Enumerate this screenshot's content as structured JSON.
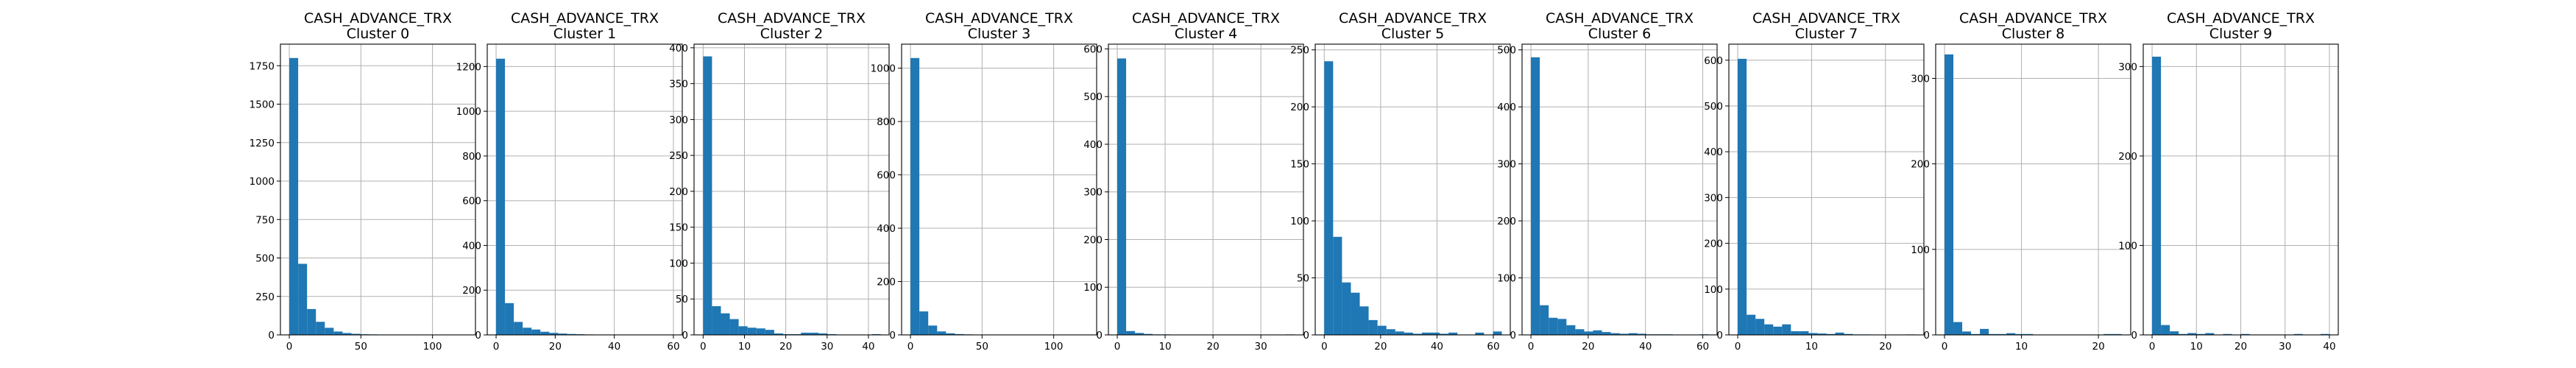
{
  "figure": {
    "bar_color": "#1f77b4",
    "grid": true,
    "layout": "1 row x 10 panels"
  },
  "chart_data": [
    {
      "type": "bar",
      "title": "CASH_ADVANCE_TRX",
      "subtitle": "Cluster 0",
      "xlim": [
        -6.2,
        130
      ],
      "ylim": [
        0,
        1890
      ],
      "xticks": [
        0,
        50,
        100
      ],
      "yticks": [
        0,
        250,
        500,
        750,
        1000,
        1250,
        1500,
        1750
      ],
      "bin_edges": [
        0,
        6.2,
        12.4,
        18.6,
        24.8,
        31,
        37.2,
        43.4,
        49.6,
        55.8,
        62,
        68.2,
        74.4,
        80.6,
        86.8,
        93,
        99.2,
        105.4,
        111.6,
        117.8,
        124
      ],
      "values": [
        1800,
        462,
        168,
        85,
        46,
        22,
        12,
        7,
        4,
        3,
        2,
        1,
        1,
        1,
        0,
        0,
        0,
        0,
        0,
        1
      ]
    },
    {
      "type": "bar",
      "title": "CASH_ADVANCE_TRX",
      "subtitle": "Cluster 1",
      "xlim": [
        -3,
        63
      ],
      "ylim": [
        0,
        1300
      ],
      "xticks": [
        0,
        20,
        40,
        60
      ],
      "yticks": [
        0,
        200,
        400,
        600,
        800,
        1000,
        1200
      ],
      "bin_edges": [
        0,
        3,
        6,
        9,
        12,
        15,
        18,
        21,
        24,
        27,
        30,
        33,
        36,
        39,
        42,
        45,
        48,
        51,
        54,
        57,
        60
      ],
      "values": [
        1235,
        142,
        58,
        32,
        24,
        14,
        9,
        6,
        4,
        3,
        2,
        1,
        1,
        1,
        0,
        0,
        0,
        0,
        0,
        1
      ]
    },
    {
      "type": "bar",
      "title": "CASH_ADVANCE_TRX",
      "subtitle": "Cluster 2",
      "xlim": [
        -2.2,
        45
      ],
      "ylim": [
        0,
        405
      ],
      "xticks": [
        0,
        10,
        20,
        30,
        40
      ],
      "yticks": [
        0,
        50,
        100,
        150,
        200,
        250,
        300,
        350,
        400
      ],
      "bin_edges": [
        0,
        2.15,
        4.3,
        6.45,
        8.6,
        10.75,
        12.9,
        15.05,
        17.2,
        19.35,
        21.5,
        23.65,
        25.8,
        27.95,
        30.1,
        32.25,
        34.4,
        36.55,
        38.7,
        40.85,
        43
      ],
      "values": [
        388,
        40,
        30,
        22,
        12,
        10,
        9,
        7,
        2,
        1,
        1,
        3,
        3,
        2,
        1,
        0,
        0,
        0,
        0,
        1
      ]
    },
    {
      "type": "bar",
      "title": "CASH_ADVANCE_TRX",
      "subtitle": "Cluster 3",
      "xlim": [
        -6.2,
        130
      ],
      "ylim": [
        0,
        1090
      ],
      "xticks": [
        0,
        50,
        100
      ],
      "yticks": [
        0,
        200,
        400,
        600,
        800,
        1000
      ],
      "bin_edges": [
        0,
        6.2,
        12.4,
        18.6,
        24.8,
        31,
        37.2,
        43.4,
        49.6,
        55.8,
        62,
        68.2,
        74.4,
        80.6,
        86.8,
        93,
        99.2,
        105.4,
        111.6,
        117.8,
        124
      ],
      "values": [
        1038,
        88,
        35,
        13,
        6,
        3,
        2,
        1,
        1,
        0,
        0,
        0,
        0,
        0,
        0,
        0,
        0,
        0,
        0,
        1
      ]
    },
    {
      "type": "bar",
      "title": "CASH_ADVANCE_TRX",
      "subtitle": "Cluster 4",
      "xlim": [
        -1.85,
        38.9
      ],
      "ylim": [
        0,
        610
      ],
      "xticks": [
        0,
        10,
        20,
        30
      ],
      "yticks": [
        0,
        100,
        200,
        300,
        400,
        500,
        600
      ],
      "bin_edges": [
        0,
        1.85,
        3.7,
        5.55,
        7.4,
        9.25,
        11.1,
        12.95,
        14.8,
        16.65,
        18.5,
        20.35,
        22.2,
        24.05,
        25.9,
        27.75,
        29.6,
        31.45,
        33.3,
        35.15,
        37
      ],
      "values": [
        580,
        8,
        4,
        2,
        1,
        1,
        0,
        0,
        0,
        0,
        0,
        0,
        0,
        0,
        0,
        0,
        0,
        0,
        0,
        1
      ]
    },
    {
      "type": "bar",
      "title": "CASH_ADVANCE_TRX",
      "subtitle": "Cluster 5",
      "xlim": [
        -3.2,
        66
      ],
      "ylim": [
        0,
        255
      ],
      "xticks": [
        0,
        20,
        40,
        60
      ],
      "yticks": [
        0,
        50,
        100,
        150,
        200,
        250
      ],
      "bin_edges": [
        0,
        3.15,
        6.3,
        9.45,
        12.6,
        15.75,
        18.9,
        22.05,
        25.2,
        28.35,
        31.5,
        34.65,
        37.8,
        40.95,
        44.1,
        47.25,
        50.4,
        53.55,
        56.7,
        59.85,
        63
      ],
      "values": [
        240,
        86,
        46,
        37,
        25,
        13,
        8,
        5,
        3,
        2,
        1,
        2,
        2,
        1,
        2,
        0,
        0,
        2,
        0,
        3
      ]
    },
    {
      "type": "bar",
      "title": "CASH_ADVANCE_TRX",
      "subtitle": "Cluster 6",
      "xlim": [
        -3.1,
        65
      ],
      "ylim": [
        0,
        510
      ],
      "xticks": [
        0,
        20,
        40,
        60
      ],
      "yticks": [
        0,
        100,
        200,
        300,
        400,
        500
      ],
      "bin_edges": [
        0,
        3.1,
        6.2,
        9.3,
        12.4,
        15.5,
        18.6,
        21.7,
        24.8,
        27.9,
        31,
        34.1,
        37.2,
        40.3,
        43.4,
        46.5,
        49.6,
        52.7,
        55.8,
        58.9,
        62
      ],
      "values": [
        487,
        52,
        30,
        28,
        17,
        10,
        6,
        8,
        5,
        3,
        2,
        3,
        2,
        1,
        1,
        1,
        0,
        0,
        0,
        1
      ]
    },
    {
      "type": "bar",
      "title": "CASH_ADVANCE_TRX",
      "subtitle": "Cluster 7",
      "xlim": [
        -1.2,
        25.2
      ],
      "ylim": [
        0,
        635
      ],
      "xticks": [
        0,
        10,
        20
      ],
      "yticks": [
        0,
        100,
        200,
        300,
        400,
        500,
        600
      ],
      "bin_edges": [
        0,
        1.2,
        2.4,
        3.6,
        4.8,
        6,
        7.2,
        8.4,
        9.6,
        10.8,
        12,
        13.2,
        14.4,
        15.6,
        16.8,
        18,
        19.2,
        20.4,
        21.6,
        22.8,
        24
      ],
      "values": [
        603,
        44,
        35,
        23,
        18,
        23,
        8,
        8,
        4,
        3,
        2,
        5,
        2,
        1,
        1,
        0,
        0,
        0,
        0,
        1
      ]
    },
    {
      "type": "bar",
      "title": "CASH_ADVANCE_TRX",
      "subtitle": "Cluster 8",
      "xlim": [
        -1.15,
        24.2
      ],
      "ylim": [
        0,
        340
      ],
      "xticks": [
        0,
        10,
        20
      ],
      "yticks": [
        0,
        100,
        200,
        300
      ],
      "bin_edges": [
        0,
        1.15,
        2.3,
        3.45,
        4.6,
        5.75,
        6.9,
        8.05,
        9.2,
        10.35,
        11.5,
        12.65,
        13.8,
        14.95,
        16.1,
        17.25,
        18.4,
        19.55,
        20.7,
        21.85,
        23
      ],
      "values": [
        328,
        15,
        4,
        1,
        7,
        1,
        1,
        2,
        1,
        1,
        0,
        0,
        0,
        0,
        0,
        0,
        0,
        0,
        1,
        1
      ]
    },
    {
      "type": "bar",
      "title": "CASH_ADVANCE_TRX",
      "subtitle": "Cluster 9",
      "xlim": [
        -2,
        42
      ],
      "ylim": [
        0,
        325
      ],
      "xticks": [
        0,
        10,
        20,
        30,
        40
      ],
      "yticks": [
        0,
        100,
        200,
        300
      ],
      "bin_edges": [
        0,
        2,
        4,
        6,
        8,
        10,
        12,
        14,
        16,
        18,
        20,
        22,
        24,
        26,
        28,
        30,
        32,
        34,
        36,
        38,
        40
      ],
      "values": [
        311,
        11,
        4,
        1,
        2,
        1,
        2,
        0,
        1,
        0,
        1,
        0,
        0,
        0,
        0,
        0,
        1,
        0,
        0,
        1
      ]
    }
  ]
}
